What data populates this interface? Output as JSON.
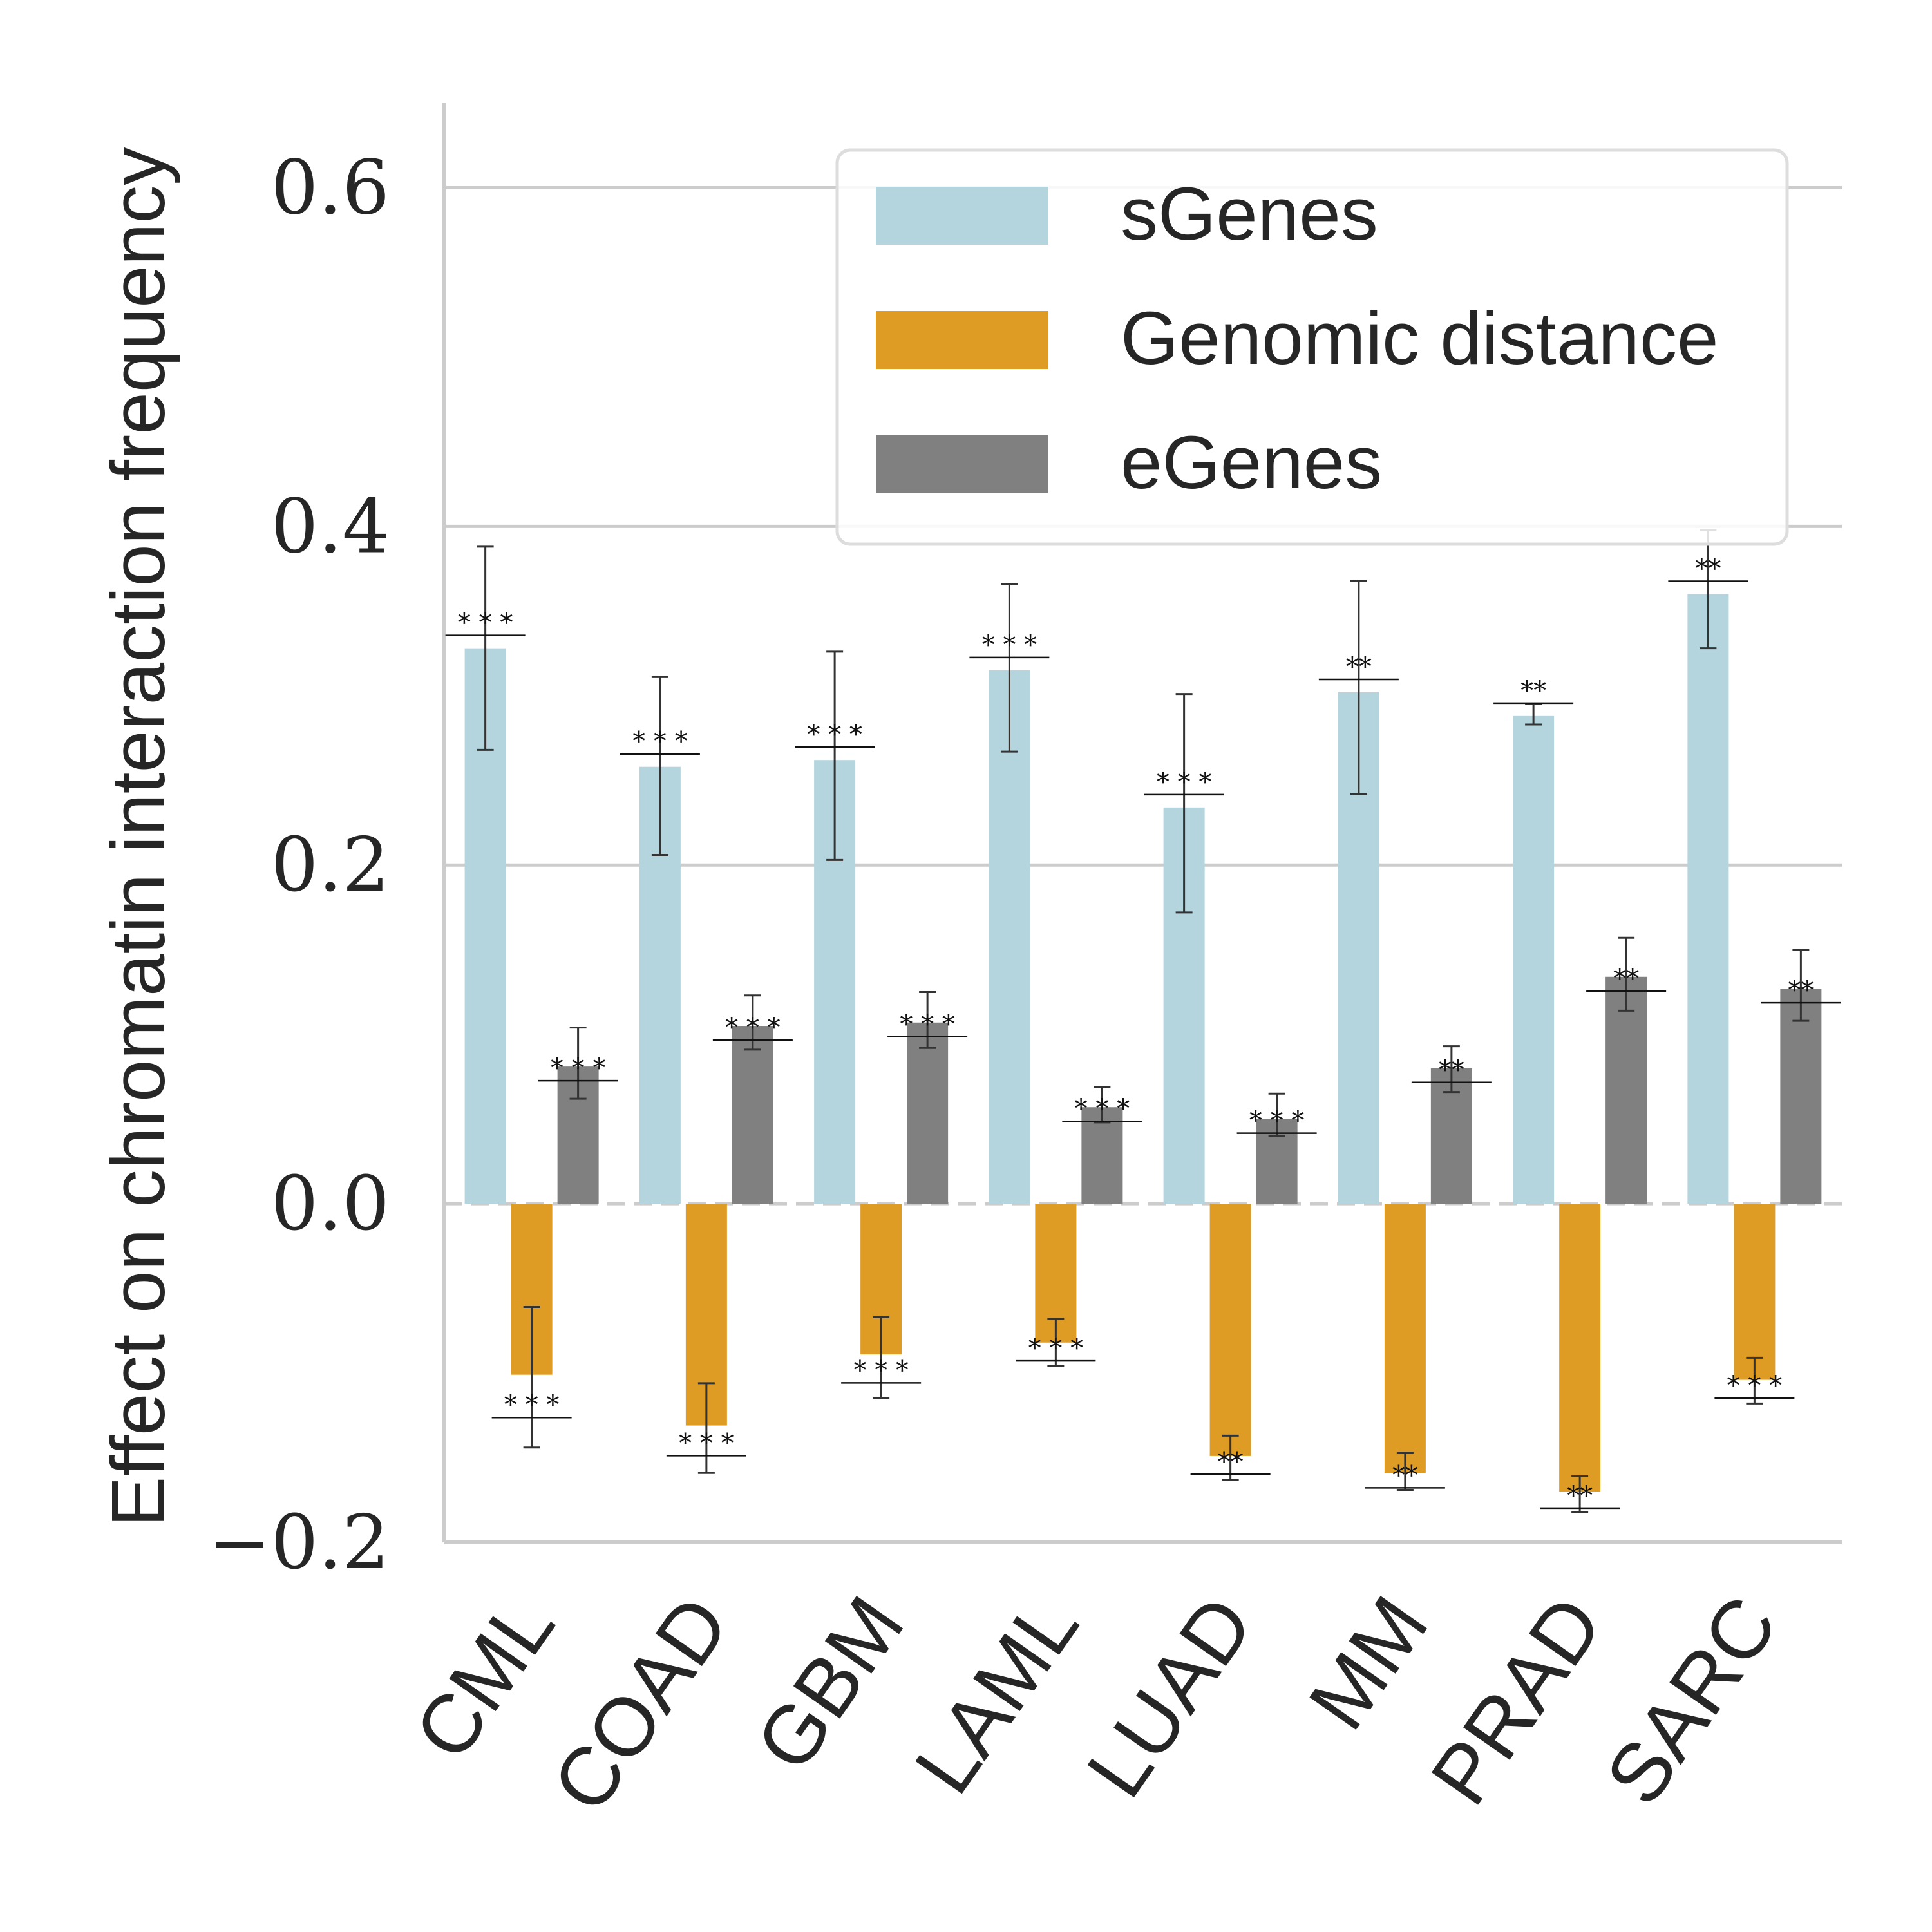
{
  "chart_data": {
    "type": "bar",
    "ylabel": "Effect on chromatin interaction frequency",
    "xlabel": "",
    "ylim": [
      -0.2,
      0.65
    ],
    "yticks": [
      -0.2,
      0.0,
      0.2,
      0.4,
      0.6
    ],
    "ytick_labels": [
      "−0.2",
      "0.0",
      "0.2",
      "0.4",
      "0.6"
    ],
    "grid": "horizontal",
    "legend": "top-right",
    "categories": [
      "CML",
      "COAD",
      "GBM",
      "LAML",
      "LUAD",
      "MM",
      "PRAD",
      "SARC"
    ],
    "series": [
      {
        "name": "sGenes",
        "color": "#b4d4de",
        "values": [
          0.328,
          0.258,
          0.262,
          0.315,
          0.234,
          0.302,
          0.288,
          0.36
        ],
        "err_low": [
          0.268,
          0.206,
          0.203,
          0.267,
          0.172,
          0.242,
          0.283,
          0.328
        ],
        "err_high": [
          0.388,
          0.311,
          0.326,
          0.366,
          0.301,
          0.368,
          0.295,
          0.398
        ],
        "significance": [
          "* * *",
          "* * *",
          "* * *",
          "* * *",
          "* * *",
          "**",
          "**",
          "**"
        ]
      },
      {
        "name": "Genomic distance",
        "color": "#df9c24",
        "values": [
          -0.101,
          -0.131,
          -0.089,
          -0.082,
          -0.149,
          -0.159,
          -0.17,
          -0.104
        ],
        "err_low": [
          -0.144,
          -0.159,
          -0.115,
          -0.096,
          -0.163,
          -0.169,
          -0.182,
          -0.118
        ],
        "err_high": [
          -0.061,
          -0.106,
          -0.067,
          -0.068,
          -0.137,
          -0.147,
          -0.161,
          -0.091
        ],
        "significance": [
          "* * *",
          "* * *",
          "* * *",
          "* * *",
          "**",
          "**",
          "**",
          "* * *"
        ]
      },
      {
        "name": "eGenes",
        "color": "#808080",
        "values": [
          0.081,
          0.105,
          0.107,
          0.057,
          0.05,
          0.08,
          0.134,
          0.127
        ],
        "err_low": [
          0.062,
          0.091,
          0.092,
          0.048,
          0.04,
          0.066,
          0.114,
          0.108
        ],
        "err_high": [
          0.104,
          0.123,
          0.125,
          0.069,
          0.065,
          0.093,
          0.157,
          0.15
        ],
        "significance": [
          "* * *",
          "* * *",
          "* * *",
          "* * *",
          "* * *",
          "**",
          "**",
          "**"
        ]
      }
    ]
  }
}
